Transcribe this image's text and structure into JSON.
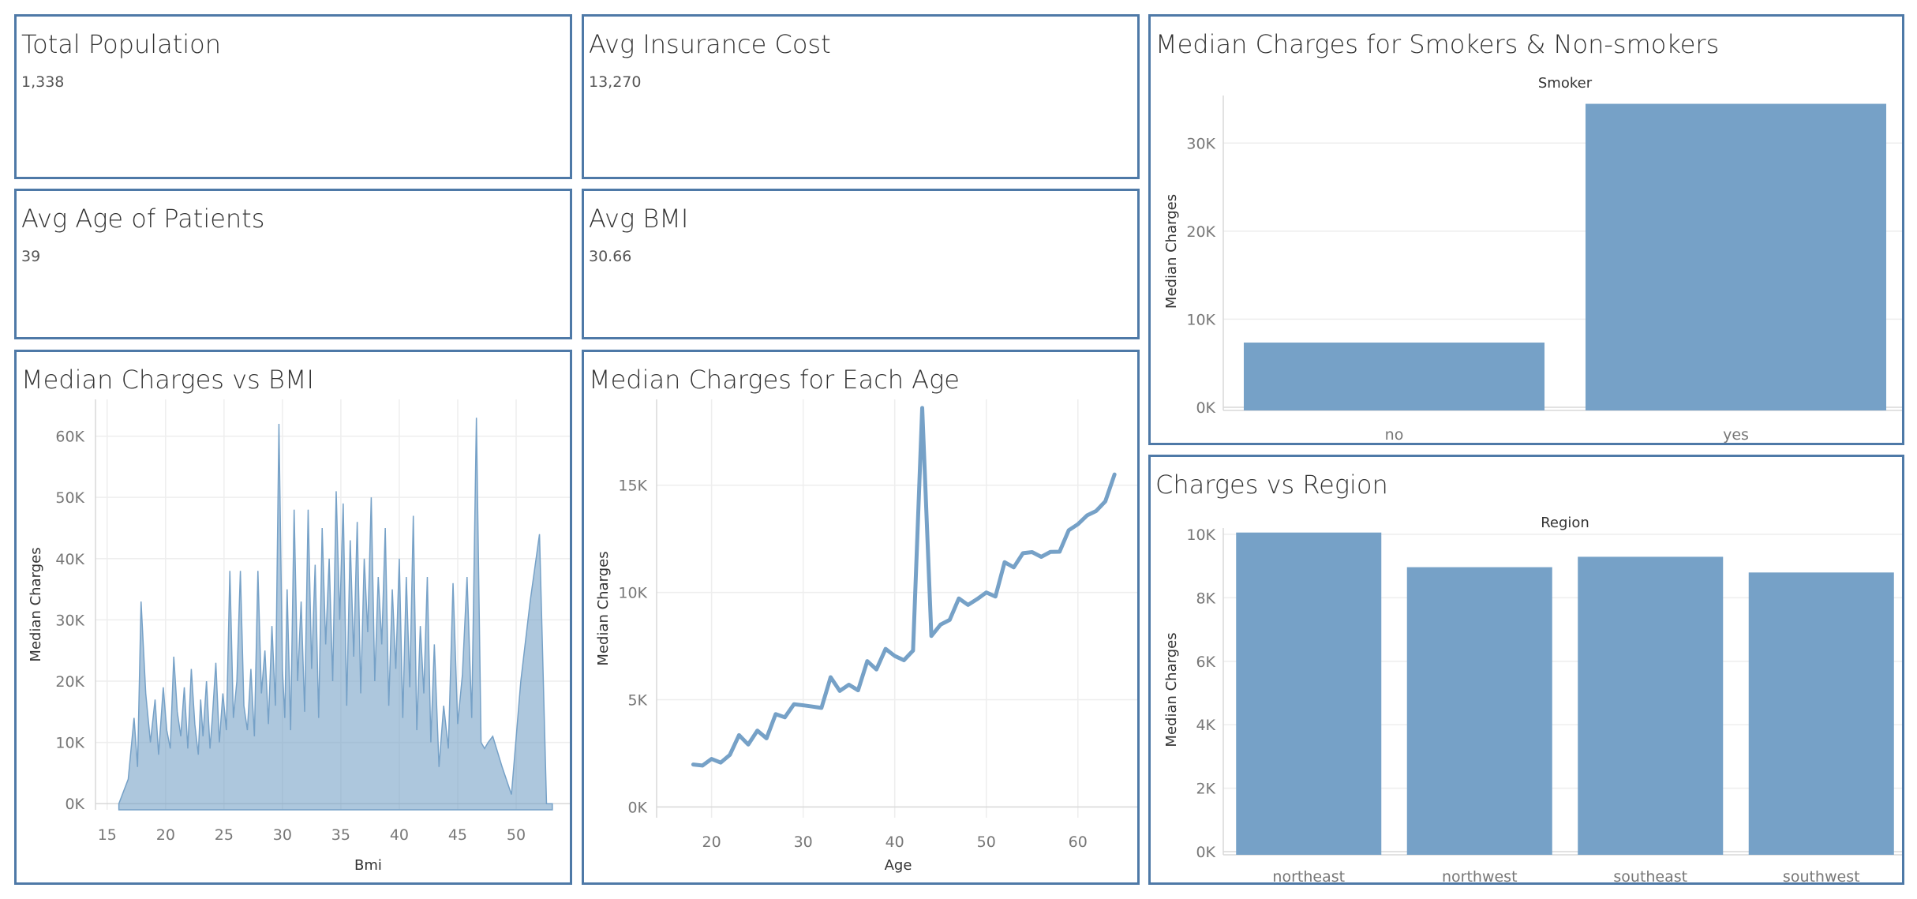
{
  "kpis": {
    "total_population": {
      "title": "Total Population",
      "value": "1,338"
    },
    "avg_insurance_cost": {
      "title": "Avg Insurance Cost",
      "value": "13,270"
    },
    "avg_age": {
      "title": "Avg Age of Patients",
      "value": "39"
    },
    "avg_bmi": {
      "title": "Avg BMI",
      "value": "30.66"
    }
  },
  "chart_data": [
    {
      "id": "smoker",
      "type": "bar",
      "title": "Median Charges for Smokers & Non-smokers",
      "column_header": "Smoker",
      "ylabel": "Median Charges",
      "categories": [
        "no",
        "yes"
      ],
      "values": [
        7346,
        34456
      ],
      "ylim": [
        0,
        35400
      ],
      "yticks": [
        0,
        10000,
        20000,
        30000
      ],
      "ytick_labels": [
        "0K",
        "10K",
        "20K",
        "30K"
      ],
      "grid": true,
      "color": "#76a1c7"
    },
    {
      "id": "region",
      "type": "bar",
      "title": "Charges vs Region",
      "column_header": "Region",
      "ylabel": "Median Charges",
      "categories": [
        "northeast",
        "northwest",
        "southeast",
        "southwest"
      ],
      "values": [
        10058,
        8966,
        9294,
        8799
      ],
      "ylim": [
        0,
        10200
      ],
      "yticks": [
        0,
        2000,
        4000,
        6000,
        8000,
        10000
      ],
      "ytick_labels": [
        "0K",
        "2K",
        "4K",
        "6K",
        "8K",
        "10K"
      ],
      "grid": true,
      "color": "#76a1c7"
    },
    {
      "id": "bmi",
      "type": "area",
      "title": "Median Charges vs BMI",
      "xlabel": "Bmi",
      "ylabel": "Median Charges",
      "xlim": [
        14,
        55
      ],
      "ylim": [
        -1000,
        66000
      ],
      "xticks": [
        15,
        20,
        25,
        30,
        35,
        40,
        45,
        50
      ],
      "yticks": [
        0,
        10000,
        20000,
        30000,
        40000,
        50000,
        60000
      ],
      "ytick_labels": [
        "0K",
        "10K",
        "20K",
        "30K",
        "40K",
        "50K",
        "60K"
      ],
      "grid": true,
      "color": "#76a1c7",
      "x": [
        16.0,
        16.8,
        17.3,
        17.6,
        17.9,
        18.3,
        18.7,
        19.1,
        19.4,
        19.8,
        20.1,
        20.4,
        20.7,
        21.0,
        21.3,
        21.6,
        21.9,
        22.2,
        22.5,
        22.8,
        23.0,
        23.2,
        23.5,
        23.8,
        24.0,
        24.3,
        24.6,
        24.9,
        25.2,
        25.5,
        25.8,
        26.1,
        26.4,
        26.7,
        27.0,
        27.3,
        27.6,
        27.9,
        28.2,
        28.5,
        28.8,
        29.1,
        29.4,
        29.7,
        30.0,
        30.2,
        30.4,
        30.7,
        31.0,
        31.3,
        31.6,
        31.9,
        32.2,
        32.5,
        32.8,
        33.1,
        33.4,
        33.7,
        34.0,
        34.3,
        34.6,
        34.9,
        35.2,
        35.5,
        35.8,
        36.1,
        36.4,
        36.7,
        37.0,
        37.3,
        37.6,
        37.9,
        38.2,
        38.5,
        38.8,
        39.1,
        39.4,
        39.7,
        40.0,
        40.3,
        40.6,
        40.9,
        41.2,
        41.5,
        41.8,
        42.1,
        42.4,
        42.7,
        43.0,
        43.4,
        43.8,
        44.2,
        44.6,
        45.0,
        45.4,
        45.8,
        46.2,
        46.6,
        47.0,
        47.3,
        47.6,
        48.0,
        48.8,
        49.6,
        50.4,
        51.2,
        52.0,
        52.6,
        53.1
      ],
      "y": [
        0,
        4000,
        14000,
        6000,
        33000,
        18000,
        10000,
        17000,
        8000,
        19000,
        12000,
        9000,
        24000,
        15000,
        11000,
        19000,
        9000,
        22000,
        13000,
        8000,
        17000,
        11000,
        20000,
        9000,
        14000,
        23000,
        10000,
        18000,
        12000,
        38000,
        14000,
        20000,
        38000,
        16000,
        12000,
        22000,
        11000,
        38000,
        18000,
        25000,
        13000,
        29000,
        16000,
        62000,
        22000,
        14000,
        35000,
        12000,
        48000,
        20000,
        33000,
        15000,
        48000,
        22000,
        39000,
        14000,
        45000,
        26000,
        40000,
        20000,
        51000,
        30000,
        49000,
        16000,
        43000,
        24000,
        46000,
        18000,
        40000,
        28000,
        50000,
        20000,
        37000,
        26000,
        45000,
        16000,
        35000,
        22000,
        40000,
        14000,
        37000,
        19000,
        47000,
        12000,
        29000,
        18000,
        37000,
        10000,
        26000,
        6000,
        16000,
        9000,
        36000,
        13000,
        21000,
        37000,
        14000,
        63000,
        10000,
        9000,
        10000,
        11000,
        6000,
        1500,
        20000,
        33000,
        44000,
        0,
        0
      ]
    },
    {
      "id": "age",
      "type": "line",
      "title": "Median Charges for Each Age",
      "xlabel": "Age",
      "ylabel": "Median Charges",
      "xlim": [
        14,
        67
      ],
      "ylim": [
        -500,
        19000
      ],
      "xticks": [
        20,
        30,
        40,
        50,
        60
      ],
      "yticks": [
        0,
        5000,
        10000,
        15000
      ],
      "ytick_labels": [
        "0K",
        "5K",
        "10K",
        "15K"
      ],
      "grid": true,
      "color": "#76a1c7",
      "x": [
        18,
        19,
        20,
        21,
        22,
        23,
        24,
        25,
        26,
        27,
        28,
        29,
        30,
        31,
        32,
        33,
        34,
        35,
        36,
        37,
        38,
        39,
        40,
        41,
        42,
        43,
        44,
        45,
        46,
        47,
        48,
        49,
        50,
        51,
        52,
        53,
        54,
        55,
        56,
        57,
        58,
        59,
        60,
        61,
        62,
        63,
        64
      ],
      "y": [
        1980,
        1930,
        2240,
        2070,
        2430,
        3350,
        2910,
        3560,
        3200,
        4330,
        4180,
        4790,
        4740,
        4680,
        4620,
        6050,
        5410,
        5700,
        5440,
        6800,
        6410,
        7370,
        7040,
        6840,
        7290,
        18600,
        7970,
        8500,
        8720,
        9720,
        9420,
        9690,
        10000,
        9810,
        11410,
        11170,
        11830,
        11880,
        11660,
        11890,
        11900,
        12900,
        13180,
        13590,
        13800,
        14250,
        15500
      ]
    }
  ]
}
